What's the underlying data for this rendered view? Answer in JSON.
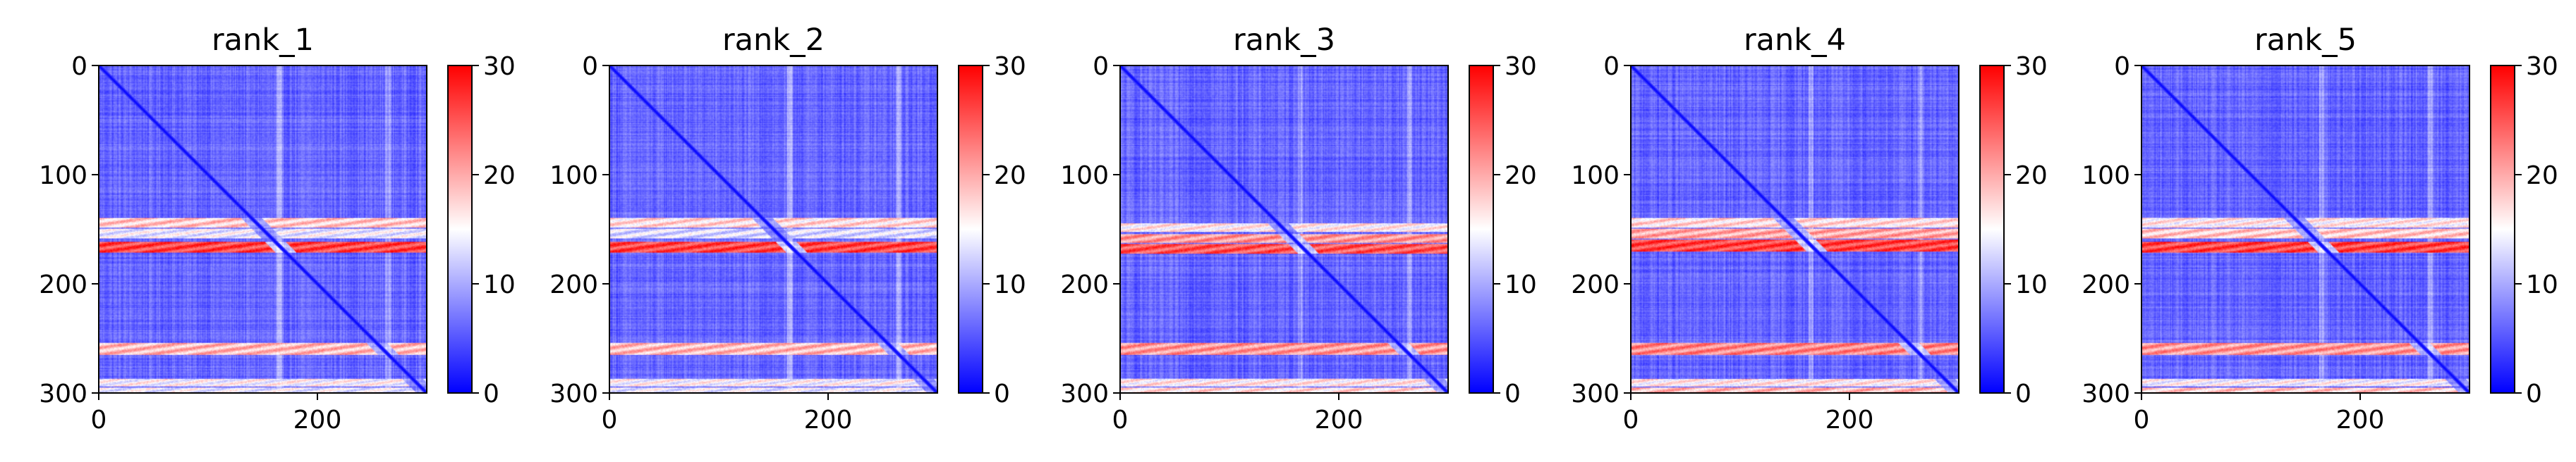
{
  "figure": {
    "background": "#ffffff",
    "colormap": "bwr",
    "colormap_stops": [
      "#0000ff",
      "#ffffff",
      "#ff0000"
    ]
  },
  "chart_data": [
    {
      "type": "heatmap",
      "title": "rank_1",
      "size": 301,
      "x_ticks": [
        0,
        200
      ],
      "y_ticks": [
        0,
        100,
        200,
        300
      ],
      "xlim": [
        0,
        300
      ],
      "ylim": [
        300,
        0
      ],
      "color_range": [
        0,
        30
      ],
      "colorbar_ticks": [
        0,
        10,
        20,
        30
      ],
      "diagonal_value": 0,
      "background_value": 6,
      "bands": [
        {
          "rows": [
            140,
            148
          ],
          "value": 18
        },
        {
          "rows": [
            150,
            158
          ],
          "value": 14
        },
        {
          "rows": [
            162,
            171
          ],
          "value": 26
        },
        {
          "rows": [
            255,
            265
          ],
          "value": 19
        },
        {
          "rows": [
            288,
            294
          ],
          "value": 15
        },
        {
          "rows": [
            296,
            300
          ],
          "value": 14
        }
      ],
      "bright_columns": [
        165,
        265
      ]
    },
    {
      "type": "heatmap",
      "title": "rank_2",
      "size": 301,
      "x_ticks": [
        0,
        200
      ],
      "y_ticks": [
        0,
        100,
        200,
        300
      ],
      "xlim": [
        0,
        300
      ],
      "ylim": [
        300,
        0
      ],
      "color_range": [
        0,
        30
      ],
      "colorbar_ticks": [
        0,
        10,
        20,
        30
      ],
      "diagonal_value": 0,
      "background_value": 6,
      "bands": [
        {
          "rows": [
            140,
            148
          ],
          "value": 17
        },
        {
          "rows": [
            150,
            158
          ],
          "value": 13
        },
        {
          "rows": [
            162,
            171
          ],
          "value": 26
        },
        {
          "rows": [
            255,
            265
          ],
          "value": 19
        },
        {
          "rows": [
            288,
            294
          ],
          "value": 15
        },
        {
          "rows": [
            296,
            300
          ],
          "value": 14
        }
      ],
      "bright_columns": [
        165,
        265
      ]
    },
    {
      "type": "heatmap",
      "title": "rank_3",
      "size": 301,
      "x_ticks": [
        0,
        200
      ],
      "y_ticks": [
        0,
        100,
        200,
        300
      ],
      "xlim": [
        0,
        300
      ],
      "ylim": [
        300,
        0
      ],
      "color_range": [
        0,
        30
      ],
      "colorbar_ticks": [
        0,
        10,
        20,
        30
      ],
      "diagonal_value": 0,
      "background_value": 6,
      "bands": [
        {
          "rows": [
            145,
            152
          ],
          "value": 16
        },
        {
          "rows": [
            155,
            162
          ],
          "value": 21
        },
        {
          "rows": [
            164,
            172
          ],
          "value": 25
        },
        {
          "rows": [
            255,
            265
          ],
          "value": 21
        },
        {
          "rows": [
            288,
            294
          ],
          "value": 16
        },
        {
          "rows": [
            296,
            300
          ],
          "value": 17
        }
      ],
      "bright_columns": [
        165,
        265
      ]
    },
    {
      "type": "heatmap",
      "title": "rank_4",
      "size": 301,
      "x_ticks": [
        0,
        200
      ],
      "y_ticks": [
        0,
        100,
        200,
        300
      ],
      "xlim": [
        0,
        300
      ],
      "ylim": [
        300,
        0
      ],
      "color_range": [
        0,
        30
      ],
      "colorbar_ticks": [
        0,
        10,
        20,
        30
      ],
      "diagonal_value": 0,
      "background_value": 6,
      "bands": [
        {
          "rows": [
            140,
            148
          ],
          "value": 17
        },
        {
          "rows": [
            150,
            158
          ],
          "value": 20
        },
        {
          "rows": [
            160,
            170
          ],
          "value": 26
        },
        {
          "rows": [
            255,
            265
          ],
          "value": 22
        },
        {
          "rows": [
            288,
            294
          ],
          "value": 16
        },
        {
          "rows": [
            296,
            300
          ],
          "value": 19
        }
      ],
      "bright_columns": [
        165,
        265
      ]
    },
    {
      "type": "heatmap",
      "title": "rank_5",
      "size": 301,
      "x_ticks": [
        0,
        200
      ],
      "y_ticks": [
        0,
        100,
        200,
        300
      ],
      "xlim": [
        0,
        300
      ],
      "ylim": [
        300,
        0
      ],
      "color_range": [
        0,
        30
      ],
      "colorbar_ticks": [
        0,
        10,
        20,
        30
      ],
      "diagonal_value": 0,
      "background_value": 6,
      "bands": [
        {
          "rows": [
            140,
            148
          ],
          "value": 16
        },
        {
          "rows": [
            150,
            158
          ],
          "value": 18
        },
        {
          "rows": [
            162,
            171
          ],
          "value": 26
        },
        {
          "rows": [
            255,
            265
          ],
          "value": 21
        },
        {
          "rows": [
            288,
            294
          ],
          "value": 15
        },
        {
          "rows": [
            296,
            300
          ],
          "value": 18
        }
      ],
      "bright_columns": [
        165,
        265
      ]
    }
  ]
}
